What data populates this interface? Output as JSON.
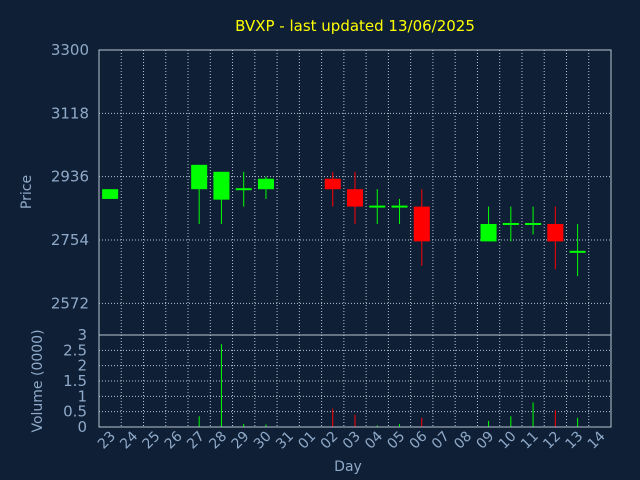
{
  "chart_data": {
    "type": "candlestick",
    "title": "BVXP - last updated 13/06/2025",
    "xlabel": "Day",
    "x_ticks": [
      "23",
      "24",
      "25",
      "26",
      "27",
      "28",
      "29",
      "30",
      "31",
      "01",
      "02",
      "03",
      "04",
      "05",
      "06",
      "07",
      "08",
      "09",
      "10",
      "11",
      "12",
      "13",
      "14"
    ],
    "price_panel": {
      "ylabel": "Price",
      "ylim": [
        2481,
        3300
      ],
      "y_ticks": [
        3300,
        3118,
        2936,
        2754,
        2572
      ],
      "grid": true,
      "candles": [
        {
          "day": "23",
          "open": 2872,
          "high": 2900,
          "low": 2872,
          "close": 2900
        },
        {
          "day": "27",
          "open": 2900,
          "high": 2970,
          "low": 2800,
          "close": 2970
        },
        {
          "day": "28",
          "open": 2870,
          "high": 2950,
          "low": 2800,
          "close": 2950
        },
        {
          "day": "29",
          "open": 2900,
          "high": 2950,
          "low": 2850,
          "close": 2900
        },
        {
          "day": "30",
          "open": 2900,
          "high": 2936,
          "low": 2872,
          "close": 2930
        },
        {
          "day": "02",
          "open": 2930,
          "high": 2950,
          "low": 2850,
          "close": 2900
        },
        {
          "day": "03",
          "open": 2900,
          "high": 2950,
          "low": 2800,
          "close": 2850
        },
        {
          "day": "04",
          "open": 2850,
          "high": 2900,
          "low": 2800,
          "close": 2850
        },
        {
          "day": "05",
          "open": 2850,
          "high": 2872,
          "low": 2800,
          "close": 2850
        },
        {
          "day": "06",
          "open": 2850,
          "high": 2900,
          "low": 2680,
          "close": 2750
        },
        {
          "day": "09",
          "open": 2750,
          "high": 2850,
          "low": 2750,
          "close": 2800
        },
        {
          "day": "10",
          "open": 2800,
          "high": 2850,
          "low": 2750,
          "close": 2800
        },
        {
          "day": "11",
          "open": 2800,
          "high": 2850,
          "low": 2770,
          "close": 2800
        },
        {
          "day": "12",
          "open": 2800,
          "high": 2850,
          "low": 2670,
          "close": 2750
        },
        {
          "day": "13",
          "open": 2720,
          "high": 2800,
          "low": 2650,
          "close": 2720
        }
      ],
      "up_color": "#00ff00",
      "down_color": "#ff0000"
    },
    "volume_panel": {
      "ylabel": "Volume (0000)",
      "ylim": [
        0,
        3
      ],
      "y_ticks": [
        "3",
        "2.5",
        "2",
        "1.5",
        "1",
        "0.5",
        "0"
      ],
      "grid": true,
      "bars": [
        {
          "day": "23",
          "value": 0.02
        },
        {
          "day": "27",
          "value": 0.35
        },
        {
          "day": "28",
          "value": 2.7
        },
        {
          "day": "29",
          "value": 0.1
        },
        {
          "day": "30",
          "value": 0.08
        },
        {
          "day": "02",
          "value": 0.6
        },
        {
          "day": "03",
          "value": 0.4
        },
        {
          "day": "04",
          "value": 0.05
        },
        {
          "day": "05",
          "value": 0.1
        },
        {
          "day": "06",
          "value": 0.3
        },
        {
          "day": "09",
          "value": 0.2
        },
        {
          "day": "10",
          "value": 0.35
        },
        {
          "day": "11",
          "value": 0.8
        },
        {
          "day": "12",
          "value": 0.55
        },
        {
          "day": "13",
          "value": 0.3
        }
      ]
    },
    "colors": {
      "background": "#0f2036",
      "plot_background": "#0f2036",
      "title": "#ffff00",
      "axis_text": "#8fa9c8",
      "grid": "#b8c4d2",
      "frame": "#b8c4d2"
    }
  }
}
